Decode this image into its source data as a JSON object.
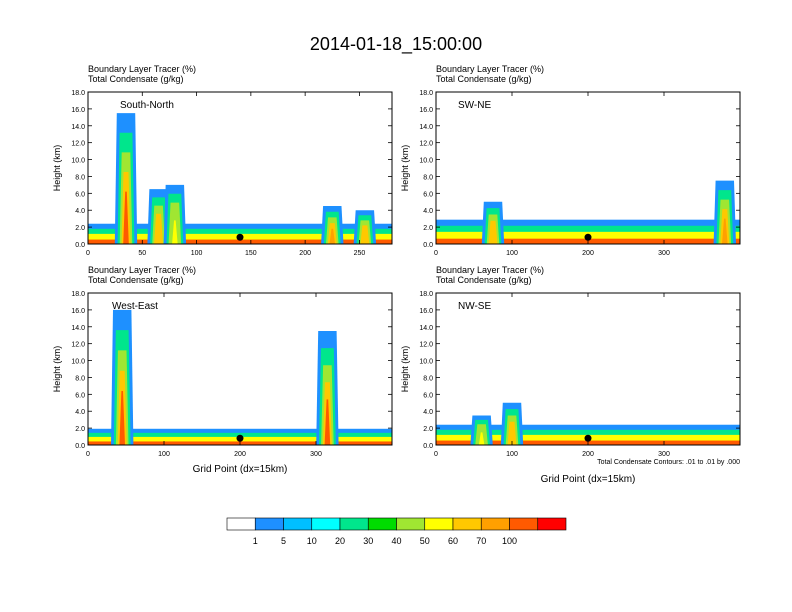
{
  "title": "2014-01-18_15:00:00",
  "panel_header_line1": "Boundary Layer Tracer   (%)",
  "panel_header_line2": "Total Condensate   (g/kg)",
  "ylabel": "Height (km)",
  "xlabel": "Grid Point (dx=15km)",
  "contour_note": "Total Condensate Contours: .01 to .01 by .000",
  "chart_data": [
    {
      "type": "heatmap",
      "name": "South-North",
      "label": "South-North",
      "xlim": [
        0,
        280
      ],
      "xticks": [
        0,
        50,
        100,
        150,
        200,
        250
      ],
      "ylim": [
        0,
        18
      ],
      "yticks": [
        "0.0",
        "2.0",
        "4.0",
        "6.0",
        "8.0",
        "10.0",
        "12.0",
        "14.0",
        "16.0",
        "18.0"
      ],
      "boundary_layer_depth_km": 1.5,
      "plumes": [
        {
          "center": 35,
          "top_km": 15.5,
          "peak_pct": 100
        },
        {
          "center": 65,
          "top_km": 6.5,
          "peak_pct": 60
        },
        {
          "center": 80,
          "top_km": 7.0,
          "peak_pct": 50
        },
        {
          "center": 225,
          "top_km": 4.5,
          "peak_pct": 70
        },
        {
          "center": 255,
          "top_km": 4.0,
          "peak_pct": 60
        }
      ],
      "surface_marker_x": 140
    },
    {
      "type": "heatmap",
      "name": "SW-NE",
      "label": "SW-NE",
      "xlim": [
        0,
        400
      ],
      "xticks": [
        0,
        100,
        200,
        300
      ],
      "ylim": [
        0,
        18
      ],
      "yticks": [
        "0.0",
        "2.0",
        "4.0",
        "6.0",
        "8.0",
        "10.0",
        "12.0",
        "14.0",
        "16.0",
        "18.0"
      ],
      "boundary_layer_depth_km": 1.8,
      "plumes": [
        {
          "center": 75,
          "top_km": 5.0,
          "peak_pct": 60
        },
        {
          "center": 380,
          "top_km": 7.5,
          "peak_pct": 80
        }
      ],
      "surface_marker_x": 200
    },
    {
      "type": "heatmap",
      "name": "West-East",
      "label": "West-East",
      "xlim": [
        0,
        400
      ],
      "xticks": [
        0,
        100,
        200,
        300
      ],
      "ylim": [
        0,
        18
      ],
      "yticks": [
        "0.0",
        "2.0",
        "4.0",
        "6.0",
        "8.0",
        "10.0",
        "12.0",
        "14.0",
        "16.0",
        "18.0"
      ],
      "boundary_layer_depth_km": 1.2,
      "plumes": [
        {
          "center": 45,
          "top_km": 16.0,
          "peak_pct": 100
        },
        {
          "center": 315,
          "top_km": 13.5,
          "peak_pct": 100
        }
      ],
      "surface_marker_x": 200
    },
    {
      "type": "heatmap",
      "name": "NW-SE",
      "label": "NW-SE",
      "xlim": [
        0,
        400
      ],
      "xticks": [
        0,
        100,
        200,
        300
      ],
      "ylim": [
        0,
        18
      ],
      "yticks": [
        "0.0",
        "2.0",
        "4.0",
        "6.0",
        "8.0",
        "10.0",
        "12.0",
        "14.0",
        "16.0",
        "18.0"
      ],
      "boundary_layer_depth_km": 1.5,
      "plumes": [
        {
          "center": 100,
          "top_km": 5.0,
          "peak_pct": 60
        },
        {
          "center": 60,
          "top_km": 3.5,
          "peak_pct": 50
        }
      ],
      "surface_marker_x": 200
    }
  ],
  "colorbar": {
    "labels": [
      "1",
      "5",
      "10",
      "20",
      "30",
      "40",
      "50",
      "60",
      "70",
      "100"
    ],
    "colors": [
      "#ffffff",
      "#1e90ff",
      "#00bfff",
      "#00ffff",
      "#00e68c",
      "#00dc00",
      "#a0e632",
      "#ffff00",
      "#ffc800",
      "#ffa000",
      "#ff5a00",
      "#ff0000"
    ]
  }
}
